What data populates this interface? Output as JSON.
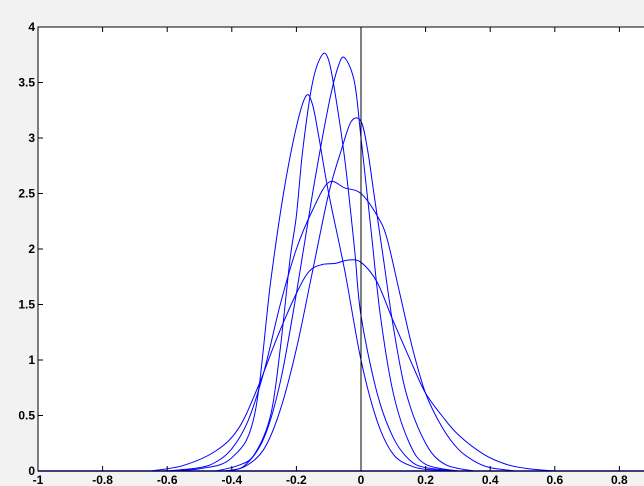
{
  "chart_data": {
    "type": "line",
    "title": "",
    "xlabel": "",
    "ylabel": "",
    "xlim": [
      -1,
      1
    ],
    "ylim": [
      0,
      4
    ],
    "grid": false,
    "legend": "none",
    "x_ticks": [
      -1,
      -0.8,
      -0.6,
      -0.4,
      -0.2,
      0,
      0.2,
      0.4,
      0.6,
      0.8
    ],
    "x_tick_labels": [
      "-1",
      "-0.8",
      "-0.6",
      "-0.4",
      "-0.2",
      "0",
      "0.2",
      "0.4",
      "0.6",
      "0.8"
    ],
    "y_ticks": [
      0,
      0.5,
      1,
      1.5,
      2,
      2.5,
      3,
      3.5,
      4
    ],
    "y_tick_labels": [
      "0",
      "0.5",
      "1",
      "1.5",
      "2",
      "2.5",
      "3",
      "3.5",
      "4"
    ],
    "vertical_line_x": 0,
    "line_color": "#0000ff",
    "series": [
      {
        "x": [
          -0.62,
          -0.5,
          -0.4,
          -0.33,
          -0.28,
          -0.24,
          -0.2,
          -0.17,
          -0.15,
          -0.13,
          -0.1,
          -0.05,
          0,
          0.05,
          0.1,
          0.16,
          0.22,
          0.3
        ],
        "y": [
          0,
          0.02,
          0.12,
          0.5,
          1.7,
          2.5,
          3.1,
          3.38,
          3.3,
          3.0,
          2.5,
          1.8,
          1.0,
          0.45,
          0.15,
          0.04,
          0.01,
          0
        ]
      },
      {
        "x": [
          -0.45,
          -0.38,
          -0.33,
          -0.28,
          -0.25,
          -0.22,
          -0.2,
          -0.18,
          -0.15,
          -0.12,
          -0.1,
          -0.08,
          -0.05,
          -0.02,
          0,
          0.05,
          0.1,
          0.15,
          0.2,
          0.3
        ],
        "y": [
          0,
          0.05,
          0.15,
          0.5,
          1.1,
          1.9,
          2.3,
          2.9,
          3.5,
          3.75,
          3.7,
          3.4,
          2.8,
          2.0,
          1.4,
          0.7,
          0.3,
          0.1,
          0.03,
          0
        ]
      },
      {
        "x": [
          -0.42,
          -0.36,
          -0.3,
          -0.25,
          -0.2,
          -0.15,
          -0.1,
          -0.07,
          -0.05,
          -0.02,
          0,
          0.03,
          0.06,
          0.1,
          0.15,
          0.2,
          0.3
        ],
        "y": [
          0,
          0.05,
          0.3,
          0.8,
          1.6,
          2.5,
          3.3,
          3.65,
          3.72,
          3.5,
          3.0,
          2.2,
          1.4,
          0.7,
          0.25,
          0.06,
          0
        ]
      },
      {
        "x": [
          -0.42,
          -0.36,
          -0.3,
          -0.25,
          -0.2,
          -0.15,
          -0.1,
          -0.06,
          -0.03,
          0,
          0.02,
          0.04,
          0.07,
          0.1,
          0.14,
          0.2,
          0.26,
          0.35
        ],
        "y": [
          0,
          0.04,
          0.2,
          0.55,
          1.1,
          1.8,
          2.5,
          2.9,
          3.15,
          3.15,
          2.9,
          2.5,
          1.9,
          1.3,
          0.7,
          0.25,
          0.06,
          0
        ]
      },
      {
        "x": [
          -0.6,
          -0.5,
          -0.45,
          -0.4,
          -0.35,
          -0.3,
          -0.25,
          -0.2,
          -0.15,
          -0.1,
          -0.05,
          0,
          0.05,
          0.08,
          0.12,
          0.16,
          0.2,
          0.25,
          0.3,
          0.35,
          0.4,
          0.48
        ],
        "y": [
          0,
          0.03,
          0.08,
          0.2,
          0.45,
          0.9,
          1.5,
          2.0,
          2.35,
          2.6,
          2.55,
          2.5,
          2.3,
          2.1,
          1.6,
          1.1,
          0.7,
          0.4,
          0.2,
          0.09,
          0.03,
          0
        ]
      },
      {
        "x": [
          -0.65,
          -0.55,
          -0.45,
          -0.38,
          -0.32,
          -0.26,
          -0.2,
          -0.16,
          -0.12,
          -0.08,
          -0.04,
          0,
          0.05,
          0.1,
          0.16,
          0.2,
          0.25,
          0.3,
          0.38,
          0.45,
          0.52,
          0.6
        ],
        "y": [
          0,
          0.05,
          0.18,
          0.38,
          0.75,
          1.2,
          1.6,
          1.8,
          1.86,
          1.87,
          1.9,
          1.88,
          1.7,
          1.35,
          0.95,
          0.7,
          0.5,
          0.33,
          0.15,
          0.06,
          0.02,
          0
        ]
      }
    ]
  }
}
